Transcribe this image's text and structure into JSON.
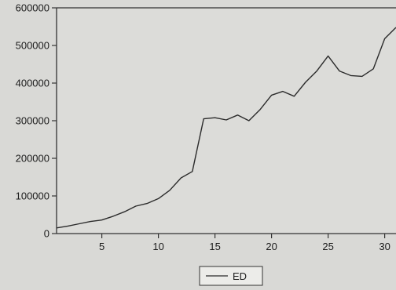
{
  "chart_data": {
    "type": "line",
    "title": "",
    "xlabel": "",
    "ylabel": "",
    "xlim": [
      1,
      31
    ],
    "ylim": [
      0,
      600000
    ],
    "x_ticks": [
      5,
      10,
      15,
      20,
      25,
      30
    ],
    "x_tick_labels": [
      "5",
      "10",
      "15",
      "20",
      "25",
      "30"
    ],
    "y_ticks": [
      0,
      100000,
      200000,
      300000,
      400000,
      500000,
      600000
    ],
    "y_tick_labels": [
      "0",
      "100000",
      "200000",
      "300000",
      "400000",
      "500000",
      "600000"
    ],
    "grid": false,
    "legend_position": "bottom-center",
    "series": [
      {
        "name": "ED",
        "color": "#2b2b2b",
        "x": [
          1,
          2,
          3,
          4,
          5,
          6,
          7,
          8,
          9,
          10,
          11,
          12,
          13,
          14,
          15,
          16,
          17,
          18,
          19,
          20,
          21,
          22,
          23,
          24,
          25,
          26,
          27,
          28,
          29,
          30,
          31
        ],
        "values": [
          15000,
          20000,
          26000,
          32000,
          36000,
          46000,
          58000,
          73000,
          80000,
          93000,
          115000,
          148000,
          165000,
          305000,
          308000,
          302000,
          315000,
          300000,
          330000,
          368000,
          378000,
          365000,
          402000,
          432000,
          472000,
          432000,
          420000,
          418000,
          438000,
          518000,
          548000
        ]
      }
    ]
  }
}
